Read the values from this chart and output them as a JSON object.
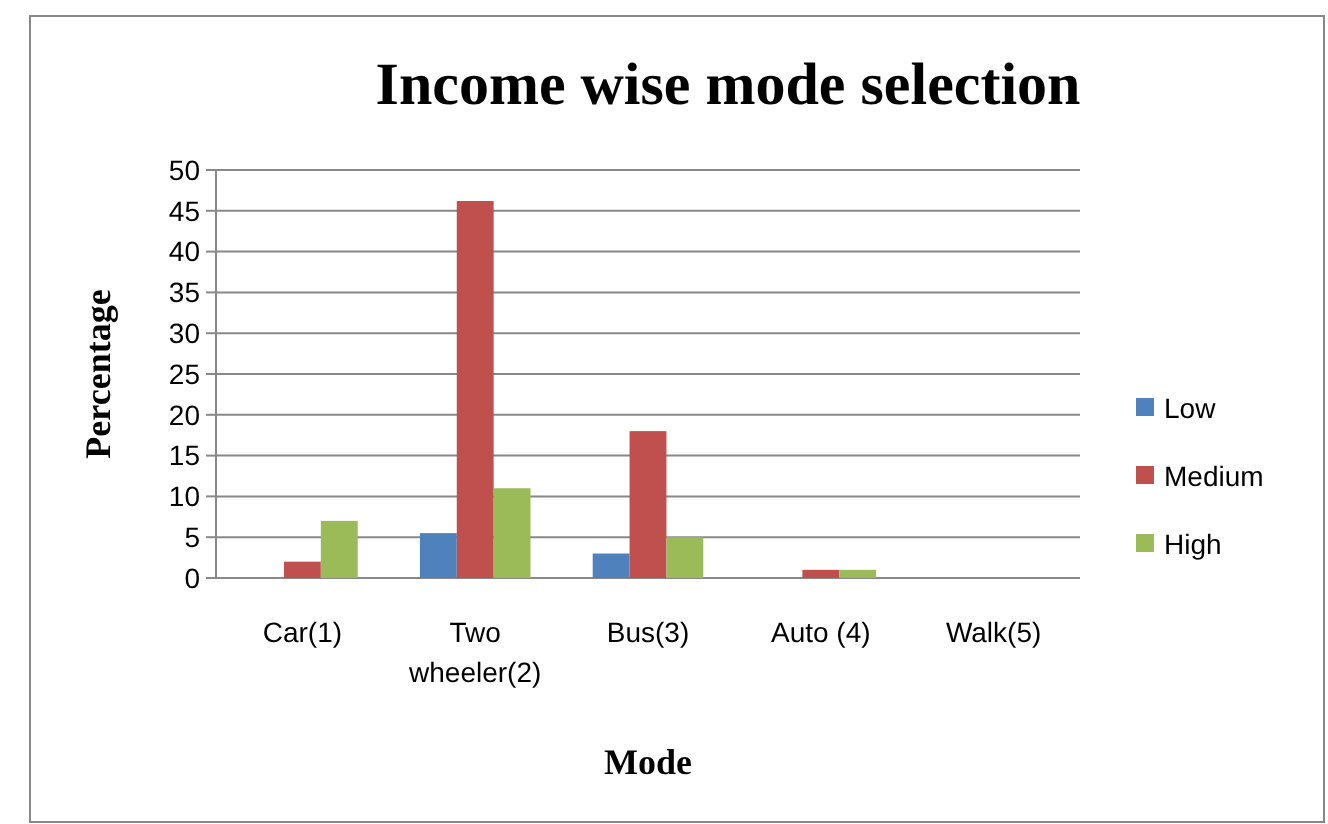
{
  "chart_data": {
    "type": "bar",
    "title": "Income wise mode selection",
    "xlabel": "Mode",
    "ylabel": "Percentage",
    "categories": [
      "Car(1)",
      "Two wheeler(2)",
      "Bus(3)",
      "Auto (4)",
      "Walk(5)"
    ],
    "series": [
      {
        "name": "Low",
        "color": "#4f81bd",
        "values": [
          0,
          5.5,
          3,
          0,
          0
        ]
      },
      {
        "name": "Medium",
        "color": "#c0504d",
        "values": [
          2,
          46.2,
          18,
          1,
          0
        ]
      },
      {
        "name": "High",
        "color": "#9bbb59",
        "values": [
          7,
          11,
          5,
          1,
          0
        ]
      }
    ],
    "ylim": [
      0,
      50
    ],
    "yticks": [
      0,
      5,
      10,
      15,
      20,
      25,
      30,
      35,
      40,
      45,
      50
    ],
    "grid": "y",
    "legend": "right"
  }
}
